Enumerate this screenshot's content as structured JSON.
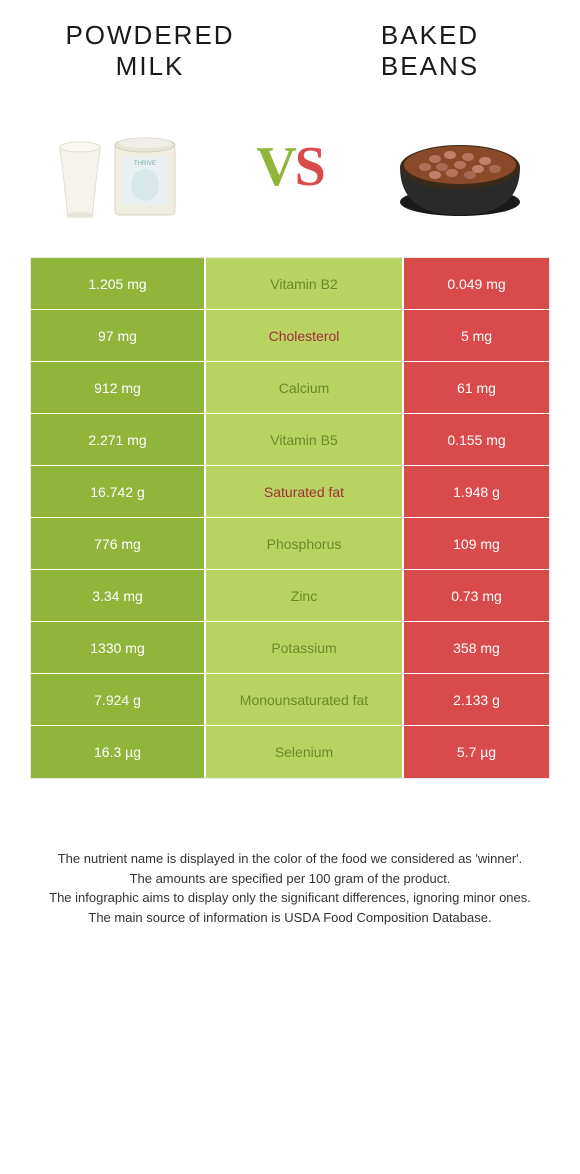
{
  "food_left": {
    "title_line1": "POWDERED",
    "title_line2": "MILK"
  },
  "food_right": {
    "title_line1": "BAKED",
    "title_line2": "BEANS"
  },
  "vs": {
    "v": "V",
    "s": "S"
  },
  "colors": {
    "left_bg": "#8fb53a",
    "mid_bg": "#b8d362",
    "right_bg": "#d94a4a",
    "nutrient_left_winner": "#6a8a2a",
    "nutrient_right_winner": "#a03333"
  },
  "rows": [
    {
      "left": "1.205 mg",
      "mid": "Vitamin B2",
      "right": "0.049 mg",
      "winner": "left"
    },
    {
      "left": "97 mg",
      "mid": "Cholesterol",
      "right": "5 mg",
      "winner": "right"
    },
    {
      "left": "912 mg",
      "mid": "Calcium",
      "right": "61 mg",
      "winner": "left"
    },
    {
      "left": "2.271 mg",
      "mid": "Vitamin B5",
      "right": "0.155 mg",
      "winner": "left"
    },
    {
      "left": "16.742 g",
      "mid": "Saturated fat",
      "right": "1.948 g",
      "winner": "right"
    },
    {
      "left": "776 mg",
      "mid": "Phosphorus",
      "right": "109 mg",
      "winner": "left"
    },
    {
      "left": "3.34 mg",
      "mid": "Zinc",
      "right": "0.73 mg",
      "winner": "left"
    },
    {
      "left": "1330 mg",
      "mid": "Potassium",
      "right": "358 mg",
      "winner": "left"
    },
    {
      "left": "7.924 g",
      "mid": "Monounsaturated fat",
      "right": "2.133 g",
      "winner": "left"
    },
    {
      "left": "16.3 µg",
      "mid": "Selenium",
      "right": "5.7 µg",
      "winner": "left"
    }
  ],
  "footer": {
    "line1": "The nutrient name is displayed in the color of the food we considered as 'winner'.",
    "line2": "The amounts are specified per 100 gram of the product.",
    "line3": "The infographic aims to display only the significant differences, ignoring minor ones.",
    "line4": "The main source of information is USDA Food Composition Database."
  }
}
